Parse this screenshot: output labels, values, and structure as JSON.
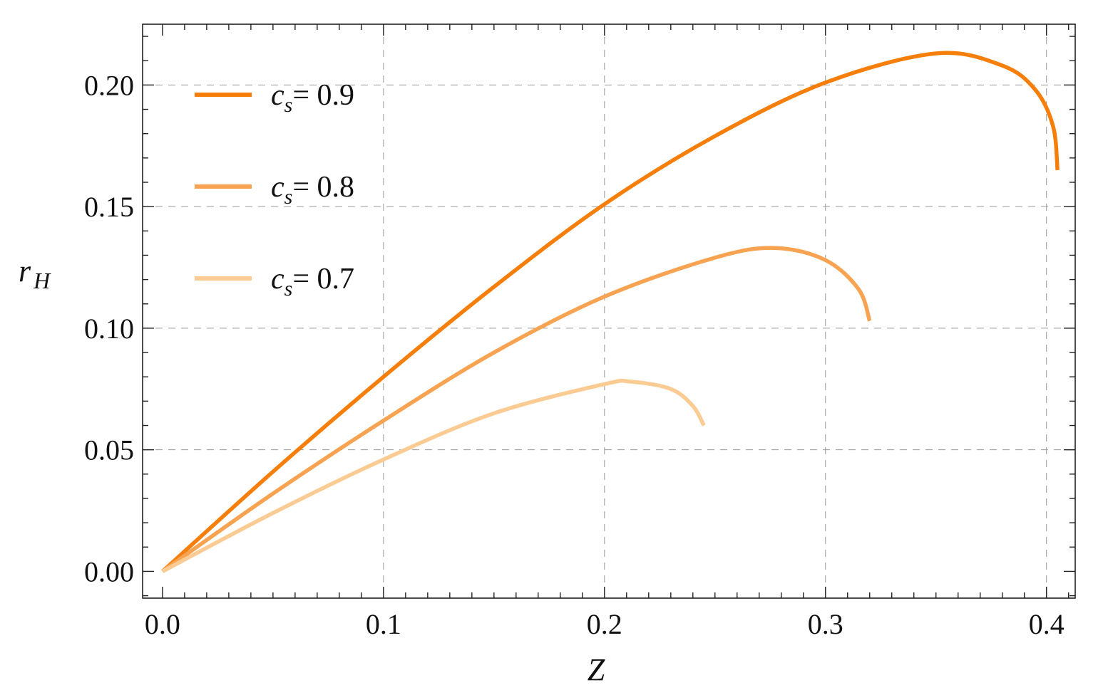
{
  "chart_data": {
    "type": "line",
    "xlabel": "Z",
    "ylabel": "r_H",
    "ylabel_main": "r",
    "ylabel_sub": "H",
    "xlim": [
      -0.009,
      0.413
    ],
    "ylim": [
      -0.011,
      0.225
    ],
    "xticks": [
      0.0,
      0.1,
      0.2,
      0.3,
      0.4
    ],
    "xtick_labels": [
      "0.0",
      "0.1",
      "0.2",
      "0.3",
      "0.4"
    ],
    "yticks": [
      0.0,
      0.05,
      0.1,
      0.15,
      0.2
    ],
    "ytick_labels": [
      "0.00",
      "0.05",
      "0.10",
      "0.15",
      "0.20"
    ],
    "grid": "dashed, at major ticks",
    "legend_placement": "top-left",
    "series": [
      {
        "name": "c_s= 0.9",
        "legend_var": "c",
        "legend_sub": "s",
        "legend_rest": "= 0.9",
        "color": "#f57f0a",
        "x": [
          0.0,
          0.05,
          0.1,
          0.15,
          0.2,
          0.25,
          0.3,
          0.35,
          0.38,
          0.395,
          0.403,
          0.405
        ],
        "y": [
          0.0,
          0.041,
          0.08,
          0.117,
          0.151,
          0.179,
          0.201,
          0.213,
          0.208,
          0.198,
          0.183,
          0.165
        ]
      },
      {
        "name": "c_s= 0.8",
        "legend_var": "c",
        "legend_sub": "s",
        "legend_rest": "= 0.8",
        "color": "#f7a352",
        "x": [
          0.0,
          0.05,
          0.1,
          0.15,
          0.2,
          0.25,
          0.277,
          0.3,
          0.315,
          0.32
        ],
        "y": [
          0.0,
          0.032,
          0.062,
          0.09,
          0.113,
          0.129,
          0.133,
          0.128,
          0.116,
          0.103
        ]
      },
      {
        "name": "c_s= 0.7",
        "legend_var": "c",
        "legend_sub": "s",
        "legend_rest": "= 0.7",
        "color": "#facb92",
        "x": [
          0.0,
          0.05,
          0.1,
          0.15,
          0.2,
          0.212,
          0.23,
          0.24,
          0.245
        ],
        "y": [
          0.0,
          0.024,
          0.046,
          0.065,
          0.077,
          0.078,
          0.075,
          0.068,
          0.06
        ]
      }
    ]
  }
}
